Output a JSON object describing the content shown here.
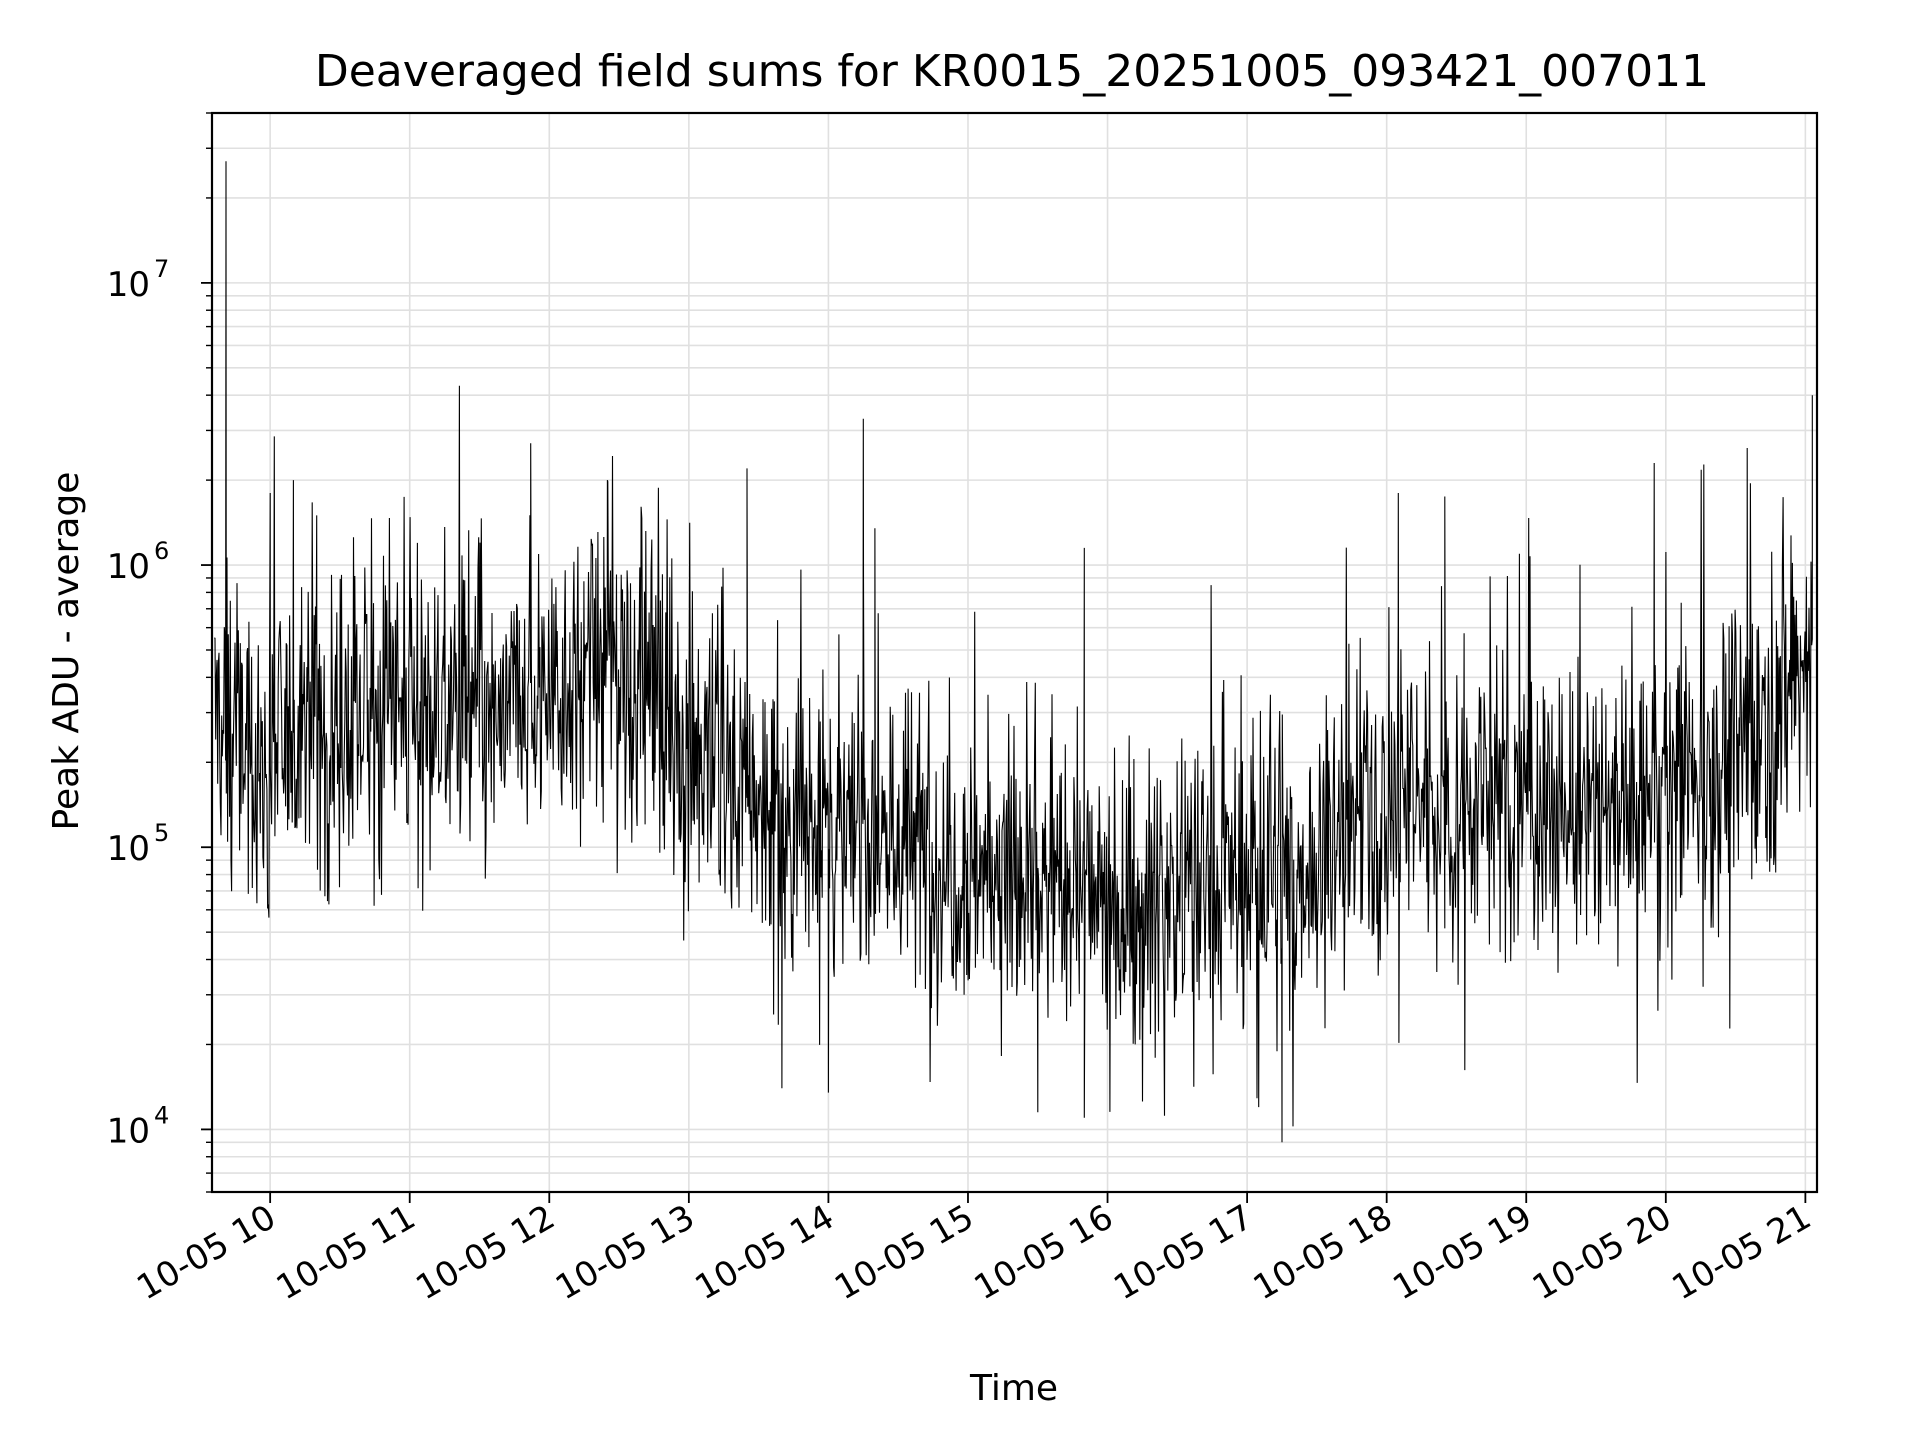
{
  "chart_data": {
    "type": "line",
    "title": "Deaveraged field sums for KR0015_20251005_093421_007011",
    "xlabel": "Time",
    "ylabel": "Peak ADU - average",
    "x_scale": "time",
    "y_scale": "log",
    "xlim": [
      "2025-10-05 09:35",
      "2025-10-05 21:05"
    ],
    "ylim": [
      6000,
      40000000
    ],
    "x_ticks": [
      "10-05 10",
      "10-05 11",
      "10-05 12",
      "10-05 13",
      "10-05 14",
      "10-05 15",
      "10-05 16",
      "10-05 17",
      "10-05 18",
      "10-05 19",
      "10-05 20",
      "10-05 21"
    ],
    "y_ticks": [
      {
        "value": 10000,
        "base": "10",
        "exp": "4"
      },
      {
        "value": 100000,
        "base": "10",
        "exp": "5"
      },
      {
        "value": 1000000,
        "base": "10",
        "exp": "6"
      },
      {
        "value": 10000000,
        "base": "10",
        "exp": "7"
      }
    ],
    "grid": true,
    "line_color": "#000000",
    "grid_color": "#e0e0e0",
    "series": [
      {
        "x": [
          "09:36",
          "09:45",
          "09:55",
          "10:05",
          "10:15",
          "10:25",
          "10:35",
          "10:45",
          "10:55",
          "11:05",
          "11:15",
          "11:25",
          "11:35",
          "11:45",
          "11:55",
          "12:05",
          "12:15",
          "12:25",
          "12:35",
          "12:45",
          "12:55",
          "13:05",
          "13:15",
          "13:25",
          "13:35",
          "13:45",
          "13:55",
          "14:05",
          "14:15",
          "14:25",
          "14:35",
          "14:45",
          "14:55",
          "15:05",
          "15:15",
          "15:25",
          "15:35",
          "15:45",
          "15:55",
          "16:05",
          "16:15",
          "16:25",
          "16:35",
          "16:45",
          "16:55",
          "17:05",
          "17:15",
          "17:25",
          "17:35",
          "17:45",
          "17:55",
          "18:05",
          "18:15",
          "18:25",
          "18:35",
          "18:45",
          "18:55",
          "19:05",
          "19:15",
          "19:25",
          "19:35",
          "19:45",
          "19:55",
          "20:05",
          "20:15",
          "20:25",
          "20:35",
          "20:45",
          "20:55",
          "21:03"
        ],
        "y": [
          300000,
          250000,
          180000,
          220000,
          300000,
          250000,
          280000,
          300000,
          320000,
          300000,
          320000,
          300000,
          250000,
          300000,
          350000,
          400000,
          380000,
          450000,
          400000,
          350000,
          250000,
          200000,
          180000,
          150000,
          120000,
          130000,
          120000,
          110000,
          120000,
          110000,
          100000,
          90000,
          90000,
          85000,
          80000,
          75000,
          75000,
          70000,
          65000,
          60000,
          60000,
          70000,
          75000,
          70000,
          80000,
          70000,
          75000,
          80000,
          100000,
          120000,
          140000,
          150000,
          150000,
          140000,
          140000,
          150000,
          150000,
          150000,
          130000,
          120000,
          130000,
          140000,
          160000,
          180000,
          200000,
          200000,
          250000,
          300000,
          400000,
          500000
        ],
        "spikes": [
          {
            "x": "09:41",
            "y": 27000000
          },
          {
            "x": "10:00",
            "y": 1800000
          },
          {
            "x": "10:10",
            "y": 2000000
          },
          {
            "x": "10:20",
            "y": 1500000
          },
          {
            "x": "11:52",
            "y": 2700000
          },
          {
            "x": "12:25",
            "y": 2000000
          },
          {
            "x": "13:25",
            "y": 2200000
          },
          {
            "x": "14:15",
            "y": 3300000
          },
          {
            "x": "14:20",
            "y": 1350000
          },
          {
            "x": "15:50",
            "y": 1150000
          },
          {
            "x": "18:05",
            "y": 1800000
          },
          {
            "x": "18:25",
            "y": 1750000
          },
          {
            "x": "19:55",
            "y": 2300000
          },
          {
            "x": "20:35",
            "y": 2600000
          },
          {
            "x": "21:03",
            "y": 4000000
          },
          {
            "x": "17:15",
            "y": 9000
          },
          {
            "x": "17:05",
            "y": 12000
          },
          {
            "x": "15:30",
            "y": 11500
          },
          {
            "x": "15:50",
            "y": 11000
          },
          {
            "x": "14:00",
            "y": 13500
          },
          {
            "x": "13:40",
            "y": 14000
          }
        ]
      }
    ]
  }
}
